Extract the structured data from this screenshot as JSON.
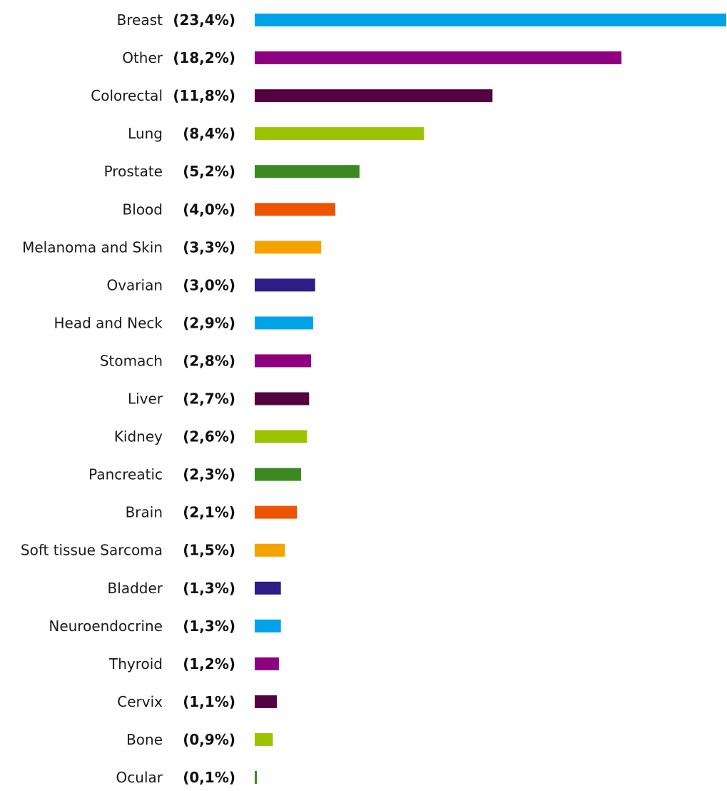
{
  "chart_data": {
    "type": "bar",
    "orientation": "horizontal",
    "categories": [
      "Breast",
      "Other",
      "Colorectal",
      "Lung",
      "Prostate",
      "Blood",
      "Melanoma and Skin",
      "Ovarian",
      "Head and Neck",
      "Stomach",
      "Liver",
      "Kidney",
      "Pancreatic",
      "Brain",
      "Soft tissue Sarcoma",
      "Bladder",
      "Neuroendocrine",
      "Thyroid",
      "Cervix",
      "Bone",
      "Ocular"
    ],
    "values": [
      23.4,
      18.2,
      11.8,
      8.4,
      5.2,
      4.0,
      3.3,
      3.0,
      2.9,
      2.8,
      2.7,
      2.6,
      2.3,
      2.1,
      1.5,
      1.3,
      1.3,
      1.2,
      1.1,
      0.9,
      0.1
    ],
    "value_labels": [
      "(23,4%)",
      "(18,2%)",
      "(11,8%)",
      "(8,4%)",
      "(5,2%)",
      "(4,0%)",
      "(3,3%)",
      "(3,0%)",
      "(2,9%)",
      "(2,8%)",
      "(2,7%)",
      "(2,6%)",
      "(2,3%)",
      "(2,1%)",
      "(1,5%)",
      "(1,3%)",
      "(1,3%)",
      "(1,2%)",
      "(1,1%)",
      "(0,9%)",
      "(0,1%)"
    ],
    "colors": [
      "#00a3e8",
      "#8e0080",
      "#550040",
      "#9cc300",
      "#3a8a21",
      "#ee5400",
      "#f4a300",
      "#2e1d86",
      "#00a3e8",
      "#8e0080",
      "#550040",
      "#9cc300",
      "#3a8a21",
      "#ee5400",
      "#f4a300",
      "#2e1d86",
      "#00a3e8",
      "#8e0080",
      "#550040",
      "#9cc300",
      "#3a8a21"
    ],
    "xlim": [
      0,
      23.4
    ],
    "title": "",
    "xlabel": "",
    "ylabel": "",
    "grid": false,
    "legend": "none"
  }
}
